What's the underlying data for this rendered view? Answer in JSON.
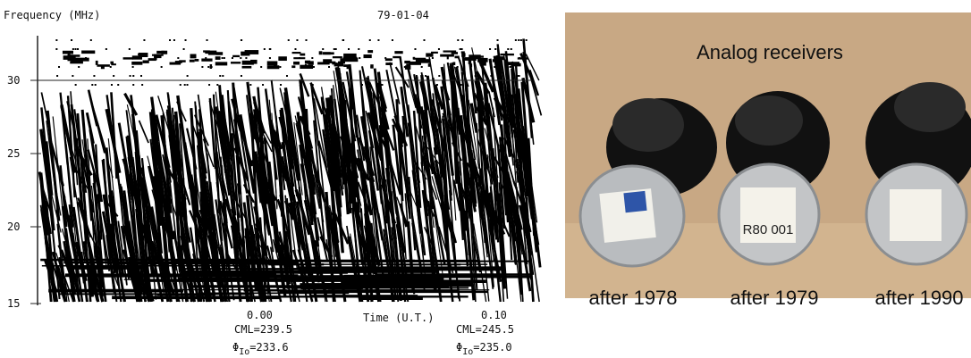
{
  "spectrogram": {
    "title": "Frequency (MHz)",
    "date": "79-01-04",
    "yticks": [
      "30",
      "25",
      "20",
      "15"
    ],
    "time_label": "Time (U.T.)",
    "marks": [
      {
        "time": "0.00",
        "cml": "CML=239.5",
        "phi": {
          "symbol": "Φ",
          "subscript": "Io",
          "value": "=233.6"
        }
      },
      {
        "time": "0.10",
        "cml": "CML=245.5",
        "phi": {
          "symbol": "Φ",
          "subscript": "Io",
          "value": "=235.0"
        }
      }
    ]
  },
  "photo": {
    "title": "Analog receivers",
    "lid_label": "R80 001",
    "captions": [
      "after 1978",
      "after 1979",
      "after 1990"
    ]
  }
}
